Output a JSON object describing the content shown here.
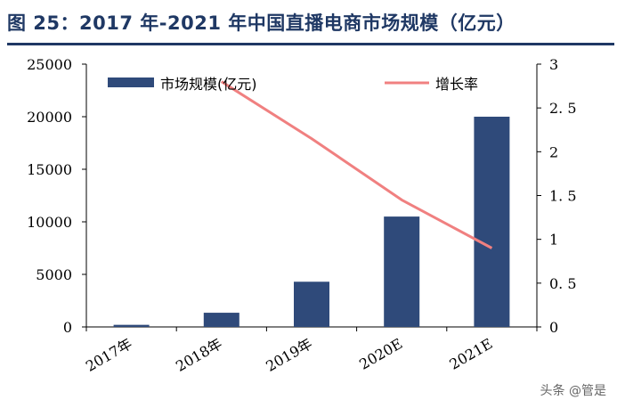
{
  "title": "图 25：2017 年-2021 年中国直播电商市场规模（亿元）",
  "watermark": "头条 @管是",
  "colors": {
    "bar": "#2f4a7a",
    "line": "#f08080",
    "title": "#1f3864",
    "axis": "#000000"
  },
  "chart_data": {
    "type": "bar",
    "categories": [
      "2017年",
      "2018年",
      "2019年",
      "2020E",
      "2021E"
    ],
    "series": [
      {
        "name": "市场规模(亿元)",
        "type": "bar",
        "axis": "left",
        "values": [
          200,
          1350,
          4300,
          10500,
          20000
        ]
      },
      {
        "name": "增长率",
        "type": "line",
        "axis": "right",
        "values": [
          null,
          2.8,
          2.15,
          1.45,
          0.9
        ]
      }
    ],
    "y_left": {
      "min": 0,
      "max": 25000,
      "ticks": [
        0,
        5000,
        10000,
        15000,
        20000,
        25000
      ],
      "tick_labels": [
        "0",
        "5000",
        "10000",
        "15000",
        "20000",
        "25000"
      ]
    },
    "y_right": {
      "min": 0,
      "max": 3,
      "ticks": [
        0,
        0.5,
        1,
        1.5,
        2,
        2.5,
        3
      ],
      "tick_labels": [
        "0",
        "0. 5",
        "1",
        "1. 5",
        "2",
        "2. 5",
        "3"
      ]
    },
    "legend_position": "top",
    "grid": false
  }
}
